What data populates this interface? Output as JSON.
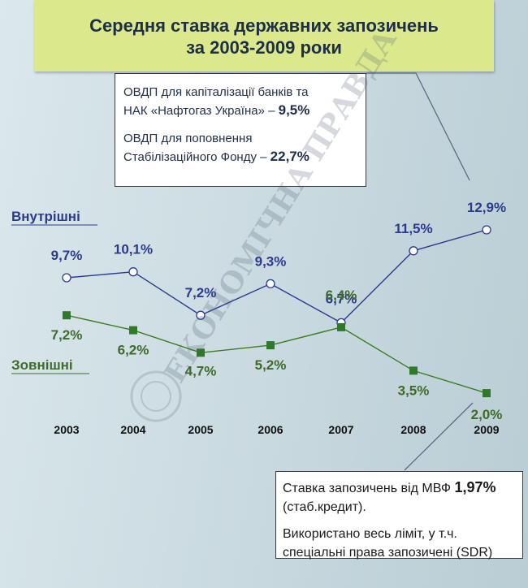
{
  "title": {
    "line1": "Середня ставка державних запозичень",
    "line2": "за 2003-2009 роки"
  },
  "note_top": {
    "line1_text": "ОВДП для капіталізації банків та",
    "line2_text": "НАК «Нафтогаз Україна» –",
    "line2_value": "9,5%",
    "line3_text": "ОВДП для поповнення",
    "line4_text": "Стабілізаційного Фонду –",
    "line4_value": "22,7%"
  },
  "note_bottom": {
    "line1_text": "Ставка запозичень від МВФ",
    "line1_value": "1,97%",
    "line2_text": "(стаб.кредит).",
    "line3_text": "Використано весь ліміт, у т.ч.",
    "line4_text": "спеціальні права запозичені (SDR)"
  },
  "watermark": "ЕКОНОМІЧНА ПРАВДА",
  "colors": {
    "domestic": "#2b3a8f",
    "external": "#3a7d22",
    "external_label": "#3e6b2a",
    "title_bg": "#dbe98c"
  },
  "chart_data": {
    "type": "line",
    "x": [
      "2003",
      "2004",
      "2005",
      "2006",
      "2007",
      "2008",
      "2009"
    ],
    "series": [
      {
        "name": "Внутрішні",
        "marker": "open-circle",
        "values": [
          9.7,
          10.1,
          7.2,
          9.3,
          6.7,
          11.5,
          12.9
        ],
        "labels": [
          "9,7%",
          "10,1%",
          "7,2%",
          "9,3%",
          "6,7%",
          "11,5%",
          "12,9%"
        ]
      },
      {
        "name": "Зовнішні",
        "marker": "filled-square",
        "values": [
          7.2,
          6.2,
          4.7,
          5.2,
          6.4,
          3.5,
          2.0
        ],
        "labels": [
          "7,2%",
          "6,2%",
          "4,7%",
          "5,2%",
          "6,4%",
          "3,5%",
          "2,0%"
        ]
      }
    ],
    "grid": false,
    "legend": "inline-left"
  }
}
